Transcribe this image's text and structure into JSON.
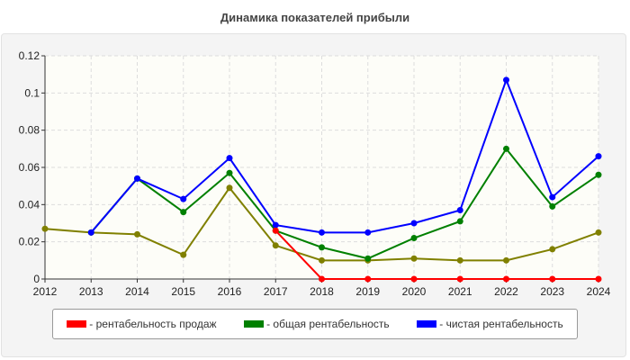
{
  "chart_data": {
    "type": "line",
    "title": "Динамика показателей прибыли",
    "x": [
      2012,
      2013,
      2014,
      2015,
      2016,
      2017,
      2018,
      2019,
      2020,
      2021,
      2022,
      2023,
      2024
    ],
    "ylim": [
      0,
      0.12
    ],
    "yticks": [
      "0",
      "0.02",
      "0.04",
      "0.06",
      "0.08",
      "0.1",
      "0.12"
    ],
    "grid": true,
    "legend_position": "bottom",
    "series": [
      {
        "name": "- рентабельность продаж",
        "color": "#ff0000",
        "values": [
          null,
          null,
          null,
          null,
          null,
          0.026,
          0,
          0,
          0,
          0,
          0,
          0,
          0
        ]
      },
      {
        "name": "- общая рентабельность",
        "color": "#008000",
        "values": [
          null,
          0.025,
          0.054,
          0.036,
          0.057,
          0.026,
          0.017,
          0.011,
          0.022,
          0.031,
          0.07,
          0.039,
          0.056
        ]
      },
      {
        "name": "- чистая рентабельность",
        "color": "#0000ff",
        "values": [
          null,
          0.025,
          0.054,
          0.043,
          0.065,
          0.029,
          0.025,
          0.025,
          0.03,
          0.037,
          0.107,
          0.044,
          0.066
        ]
      },
      {
        "name": "",
        "color": "#808000",
        "values": [
          0.027,
          0.025,
          0.024,
          0.013,
          0.049,
          0.018,
          0.01,
          0.01,
          0.011,
          0.01,
          0.01,
          0.016,
          0.025
        ]
      }
    ]
  }
}
